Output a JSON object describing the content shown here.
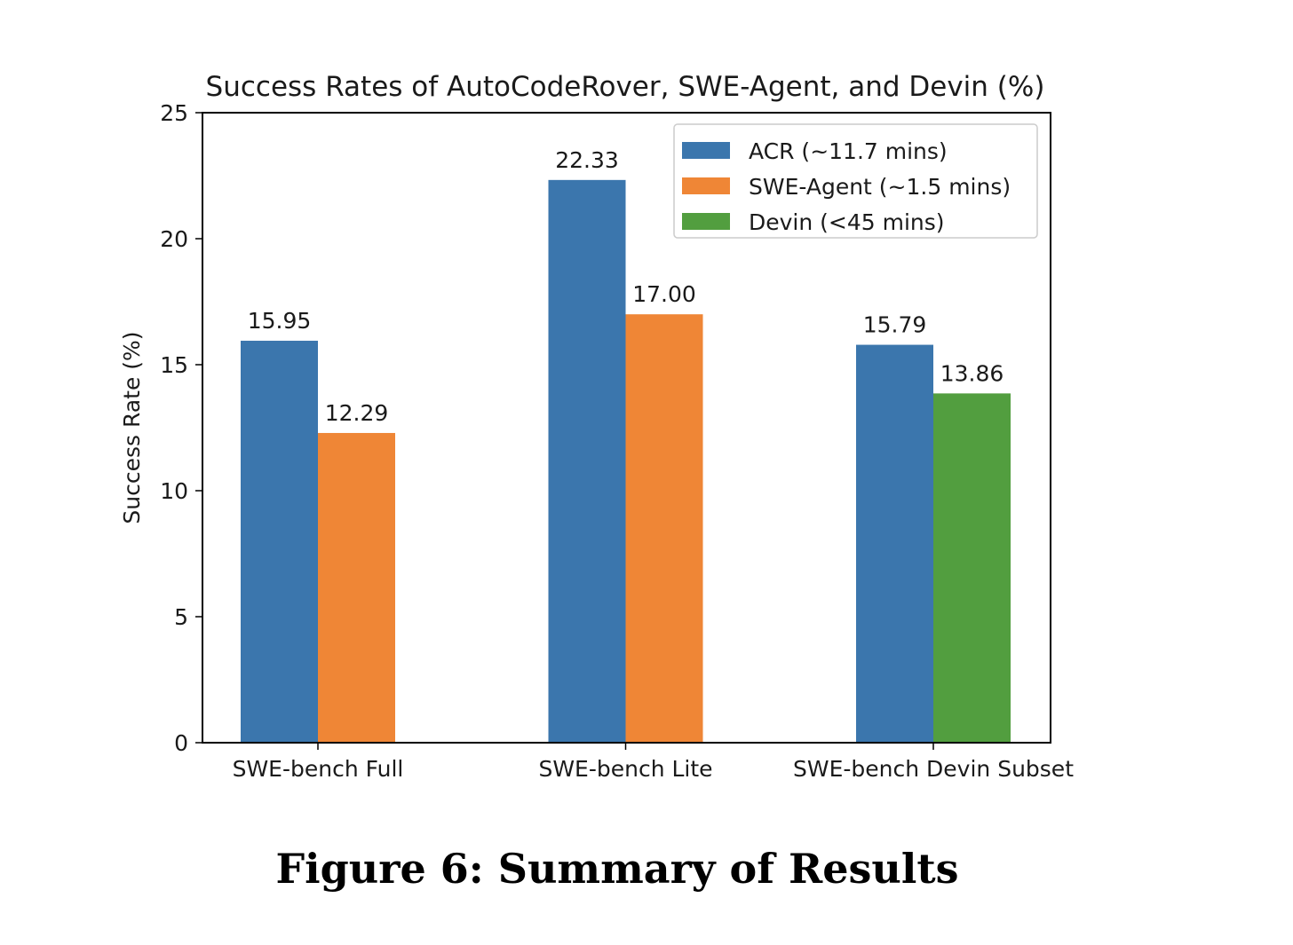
{
  "caption": "Figure 6: Summary of Results",
  "chart_data": {
    "type": "bar",
    "title": "Success Rates of AutoCodeRover, SWE-Agent, and Devin (%)",
    "xlabel": "",
    "ylabel": "Success Rate (%)",
    "ylim": [
      0,
      25
    ],
    "yticks": [
      0,
      5,
      10,
      15,
      20,
      25
    ],
    "grid": false,
    "legend_position": "top-right",
    "categories": [
      "SWE-bench Full",
      "SWE-bench Lite",
      "SWE-bench Devin Subset"
    ],
    "series": [
      {
        "name": "ACR (~11.7 mins)",
        "color": "#3b76ad",
        "values": [
          15.95,
          22.33,
          15.79
        ],
        "labels": [
          "15.95",
          "22.33",
          "15.79"
        ]
      },
      {
        "name": "SWE-Agent (~1.5 mins)",
        "color": "#ef8636",
        "values": [
          12.29,
          17.0,
          null
        ],
        "labels": [
          "12.29",
          "17.00",
          null
        ]
      },
      {
        "name": "Devin (<45 mins)",
        "color": "#529e3f",
        "values": [
          null,
          null,
          13.86
        ],
        "labels": [
          null,
          null,
          "13.86"
        ]
      }
    ]
  }
}
